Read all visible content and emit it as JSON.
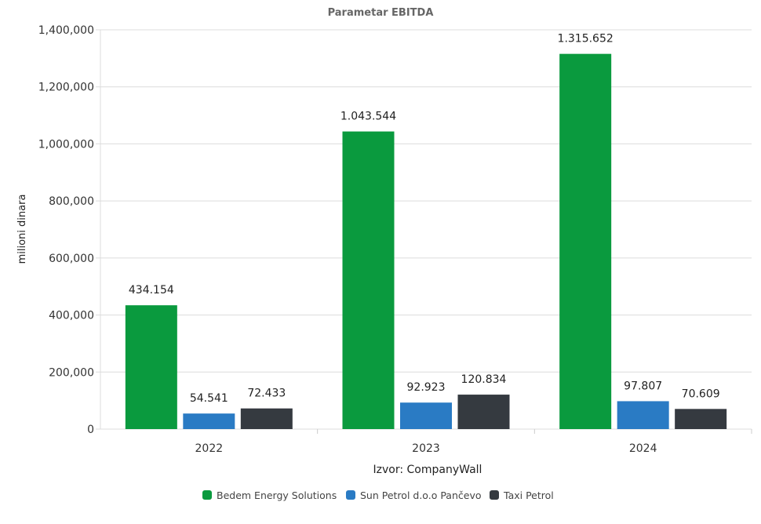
{
  "chart_data": {
    "type": "bar",
    "title": "Parametar EBITDA",
    "xlabel": "Izvor: CompanyWall",
    "ylabel": "milioni dinara",
    "ylim": [
      0,
      1400000
    ],
    "yticks": [
      0,
      200000,
      400000,
      600000,
      800000,
      1000000,
      1200000,
      1400000
    ],
    "ytick_labels": [
      "0",
      "200,000",
      "400,000",
      "600,000",
      "800,000",
      "1,000,000",
      "1,200,000",
      "1,400,000"
    ],
    "categories": [
      "2022",
      "2023",
      "2024"
    ],
    "grid": true,
    "legend_position": "bottom",
    "series": [
      {
        "name": "Bedem Energy Solutions",
        "color": "#0a9a3e",
        "values": [
          434154,
          1043544,
          1315652
        ],
        "labels": [
          "434.154",
          "1.043.544",
          "1.315.652"
        ]
      },
      {
        "name": "Sun Petrol d.o.o Pančevo",
        "color": "#2a7bc4",
        "values": [
          54541,
          92923,
          97807
        ],
        "labels": [
          "54.541",
          "92.923",
          "97.807"
        ]
      },
      {
        "name": "Taxi Petrol",
        "color": "#353a40",
        "values": [
          72433,
          120834,
          70609
        ],
        "labels": [
          "72.433",
          "120.834",
          "70.609"
        ]
      }
    ]
  }
}
